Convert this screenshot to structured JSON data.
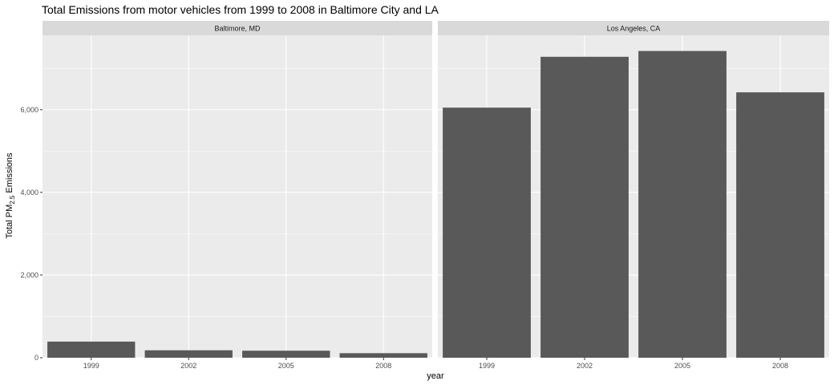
{
  "chart_data": {
    "type": "bar",
    "title": "Total Emissions from motor vehicles from 1999 to 2008 in Baltimore City and LA",
    "xlabel": "year",
    "ylabel": {
      "prefix": "Total PM",
      "subscript": "2.5",
      "suffix": " Emissions"
    },
    "categories": [
      "1999",
      "2002",
      "2005",
      "2008"
    ],
    "ylim": [
      0,
      7800
    ],
    "yticks": [
      0,
      2000,
      4000,
      6000
    ],
    "ytick_labels": [
      "0",
      "2,000",
      "4,000",
      "6,000"
    ],
    "grid": true,
    "facets": [
      {
        "name": "Baltimore, MD",
        "values": [
          390,
          180,
          170,
          110
        ]
      },
      {
        "name": "Los Angeles, CA",
        "values": [
          6050,
          7280,
          7420,
          6420
        ]
      }
    ],
    "colors": {
      "bar": "#595959",
      "panel": "#ebebeb",
      "strip": "#d9d9d9",
      "grid": "#ffffff"
    }
  }
}
